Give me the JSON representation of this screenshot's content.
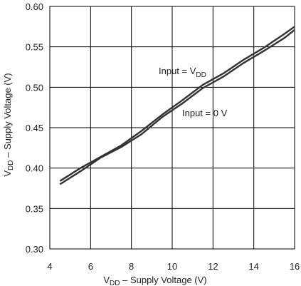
{
  "chart_data": {
    "type": "line",
    "title": "",
    "xlabel": {
      "main": "V",
      "sub": "DD",
      "rest": " – Supply Voltage (V)"
    },
    "ylabel": {
      "main": "V",
      "sub": "DD",
      "rest": " – Supply Voltage (V)"
    },
    "xlim": [
      4,
      16
    ],
    "ylim": [
      0.3,
      0.6
    ],
    "xticks": [
      "4",
      "6",
      "8",
      "10",
      "12",
      "14",
      "16"
    ],
    "yticks": [
      "0.30",
      "0.35",
      "0.40",
      "0.45",
      "0.50",
      "0.55",
      "0.60"
    ],
    "grid": true,
    "series": [
      {
        "name": "Input = VDD",
        "x": [
          4.5,
          5.5,
          6.5,
          7.5,
          8.5,
          9.5,
          10.5,
          11.5,
          12.5,
          13.5,
          14.5,
          15.5,
          16
        ],
        "y": [
          0.384,
          0.4,
          0.414,
          0.428,
          0.446,
          0.466,
          0.484,
          0.503,
          0.517,
          0.534,
          0.549,
          0.566,
          0.575
        ]
      },
      {
        "name": "Input = 0 V",
        "x": [
          4.5,
          5.5,
          6.5,
          7.5,
          8.5,
          9.5,
          10.5,
          11.5,
          12.5,
          13.5,
          14.5,
          15.5,
          16
        ],
        "y": [
          0.38,
          0.396,
          0.413,
          0.426,
          0.442,
          0.463,
          0.48,
          0.499,
          0.513,
          0.53,
          0.545,
          0.561,
          0.571
        ]
      }
    ],
    "annotations": [
      {
        "main": "Input = V",
        "sub": "DD"
      },
      {
        "main": "Input = 0 V",
        "sub": ""
      }
    ],
    "colors": {
      "line": "#333333",
      "grid": "#000000",
      "background": "#ffffff"
    }
  }
}
